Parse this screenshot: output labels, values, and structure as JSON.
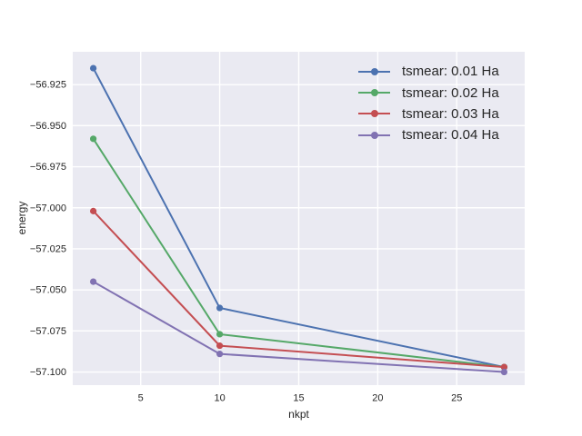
{
  "chart_data": {
    "type": "line",
    "title": "",
    "xlabel": "nkpt",
    "ylabel": "energy",
    "x": [
      2,
      10,
      28
    ],
    "series": [
      {
        "name": "tsmear: 0.01 Ha",
        "color": "#4c72b0",
        "values": [
          -56.915,
          -57.061,
          -57.097
        ]
      },
      {
        "name": "tsmear: 0.02 Ha",
        "color": "#55a868",
        "values": [
          -56.958,
          -57.077,
          -57.097
        ]
      },
      {
        "name": "tsmear: 0.03 Ha",
        "color": "#c44e52",
        "values": [
          -57.002,
          -57.084,
          -57.097
        ]
      },
      {
        "name": "tsmear: 0.04 Ha",
        "color": "#8172b2",
        "values": [
          -57.045,
          -57.089,
          -57.1
        ]
      }
    ],
    "xticks": [
      5,
      10,
      15,
      20,
      25
    ],
    "yticks": [
      -56.925,
      -56.95,
      -56.975,
      -57.0,
      -57.025,
      -57.05,
      -57.075,
      -57.1
    ],
    "xlim": [
      0.7,
      29.3
    ],
    "ylim": [
      -57.108,
      -56.905
    ],
    "grid": true,
    "legend_position": "upper right",
    "style": {
      "axes_facecolor": "#eaeaf2",
      "grid_color": "#ffffff",
      "text_color": "#262626",
      "figure_facecolor": "#ffffff"
    }
  }
}
